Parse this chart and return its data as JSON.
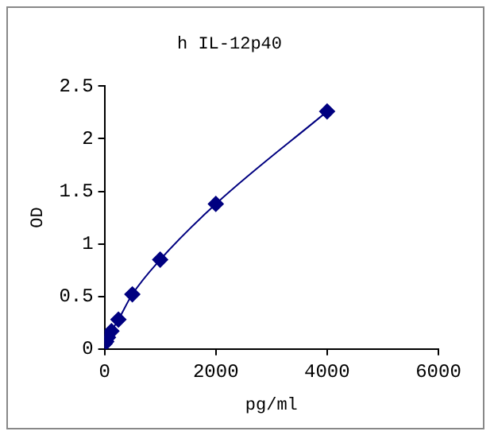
{
  "chart_data": {
    "type": "line",
    "title": "h IL-12p40",
    "xlabel": "pg/ml",
    "ylabel": "OD",
    "x": [
      0,
      31.25,
      62.5,
      125,
      250,
      500,
      1000,
      2000,
      4000
    ],
    "series": [
      {
        "color": "#000080",
        "values": [
          0.05,
          0.07,
          0.11,
          0.17,
          0.28,
          0.52,
          0.85,
          1.38,
          2.26
        ]
      }
    ],
    "xlim": [
      0,
      6000
    ],
    "xticks": [
      0,
      2000,
      4000,
      6000
    ],
    "ylim": [
      0,
      2.5
    ],
    "yticks": [
      0,
      0.5,
      1,
      1.5,
      2,
      2.5
    ],
    "grid": false,
    "legend": false,
    "marker": "diamond",
    "line_style": "solid"
  }
}
